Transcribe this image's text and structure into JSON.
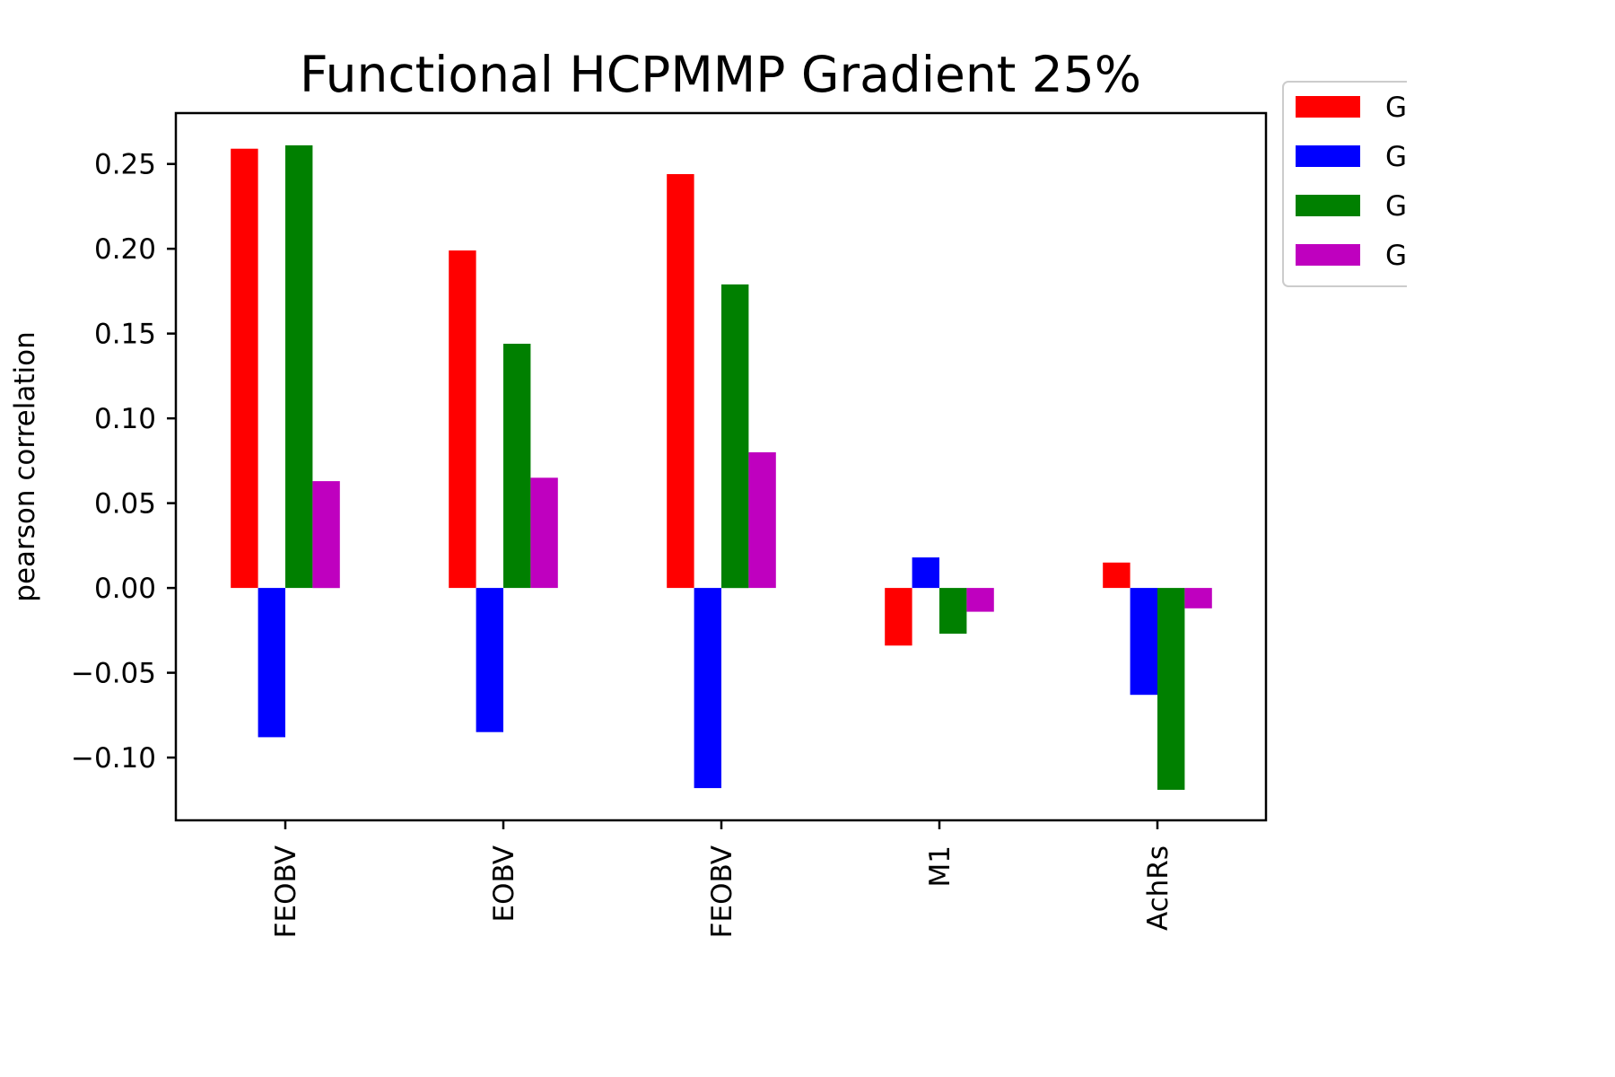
{
  "chart_data": {
    "type": "bar",
    "title": "Functional HCPMMP Gradient 25%",
    "xlabel": "",
    "ylabel": "pearson correlation",
    "categories": [
      "FEOBV",
      "EOBV",
      "FEOBV",
      "M1",
      "AchRs"
    ],
    "series": [
      {
        "name": "G",
        "color": "#ff0000",
        "values": [
          0.259,
          0.199,
          0.244,
          -0.034,
          0.015
        ]
      },
      {
        "name": "G",
        "color": "#0000ff",
        "values": [
          -0.088,
          -0.085,
          -0.118,
          0.018,
          -0.063
        ]
      },
      {
        "name": "G",
        "color": "#008000",
        "values": [
          0.261,
          0.144,
          0.179,
          -0.027,
          -0.119
        ]
      },
      {
        "name": "G",
        "color": "#bf00bf",
        "values": [
          0.063,
          0.065,
          0.08,
          -0.014,
          -0.012
        ]
      }
    ],
    "ylim": [
      -0.137,
      0.28
    ],
    "yticks": [
      -0.1,
      -0.05,
      0.0,
      0.05,
      0.1,
      0.15,
      0.2,
      0.25
    ],
    "ytick_labels": [
      "−0.10",
      "−0.05",
      "0.00",
      "0.05",
      "0.10",
      "0.15",
      "0.20",
      "0.25"
    ],
    "grid": false,
    "legend_position": "outside-top-right"
  }
}
